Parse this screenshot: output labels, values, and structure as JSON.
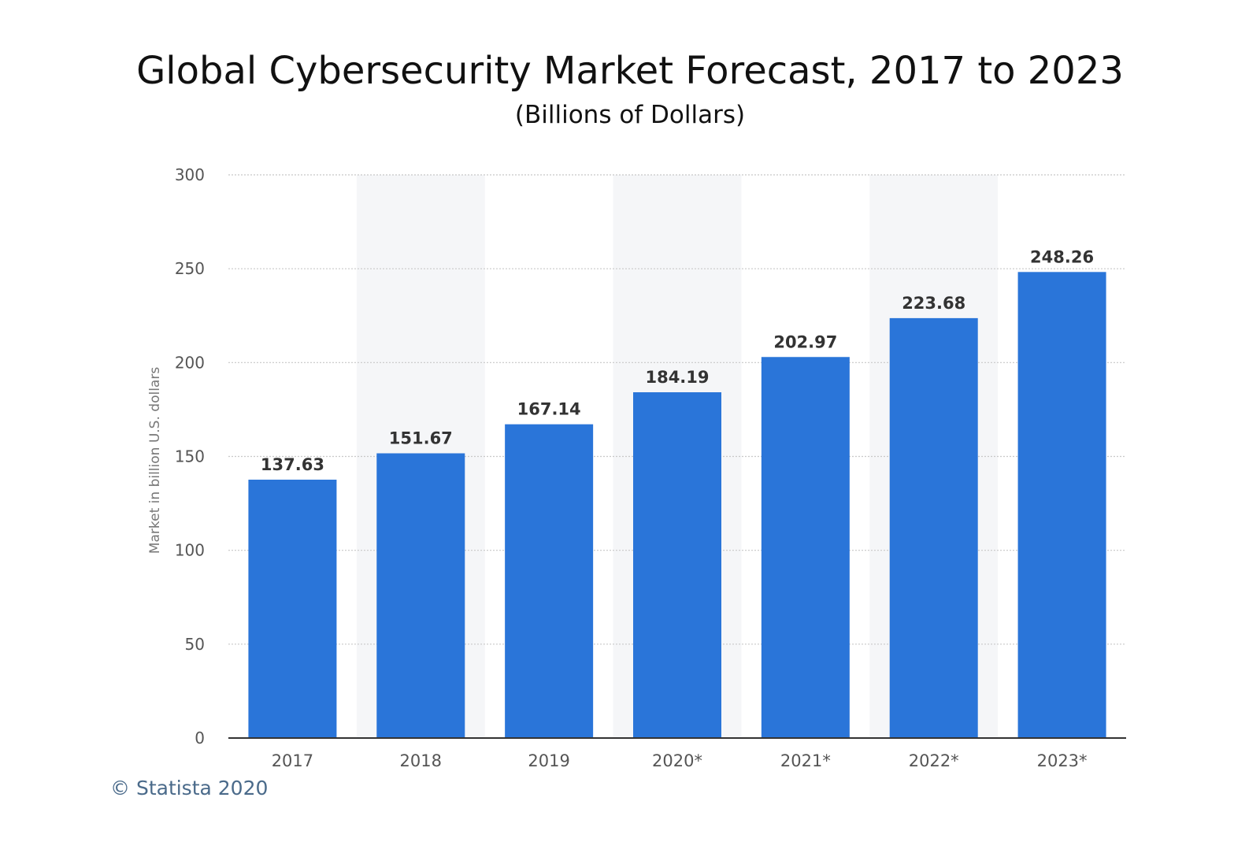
{
  "chart_data": {
    "type": "bar",
    "title": "Global Cybersecurity Market Forecast, 2017 to 2023",
    "subtitle": "(Billions of Dollars)",
    "ylabel": "Market in billion U.S. dollars",
    "xlabel": "",
    "categories": [
      "2017",
      "2018",
      "2019",
      "2020*",
      "2021*",
      "2022*",
      "2023*"
    ],
    "values": [
      137.63,
      151.67,
      167.14,
      184.19,
      202.97,
      223.68,
      248.26
    ],
    "value_labels": [
      "137.63",
      "151.67",
      "167.14",
      "184.19",
      "202.97",
      "223.68",
      "248.26"
    ],
    "ylim": [
      0,
      300
    ],
    "yticks": [
      0,
      50,
      100,
      150,
      200,
      250,
      300
    ],
    "grid": true,
    "bar_color": "#2a75d9",
    "alt_band_color": "#f5f6f8"
  },
  "footer": {
    "credit": "© Statista 2020"
  }
}
